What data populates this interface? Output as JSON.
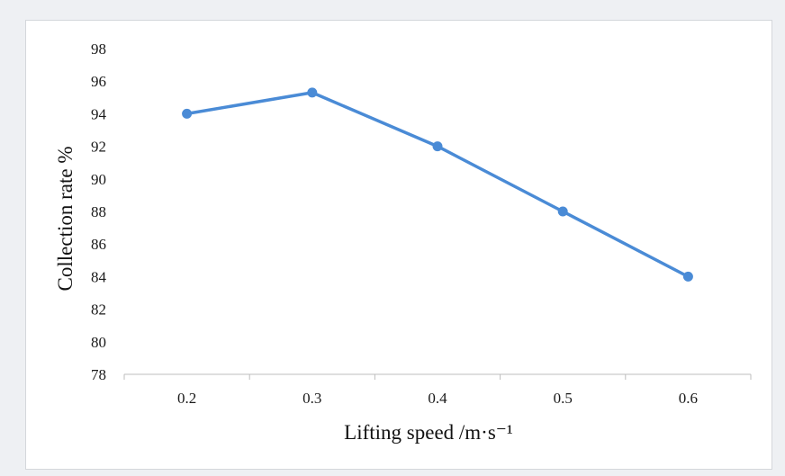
{
  "chart_data": {
    "type": "line",
    "xlabel": "Lifting speed /m·s⁻¹",
    "ylabel": "Collection rate %",
    "categories": [
      "0.2",
      "0.3",
      "0.4",
      "0.5",
      "0.6"
    ],
    "series": [
      {
        "values": [
          94.0,
          95.3,
          92.0,
          88.0,
          84.0
        ],
        "color": "#4a8bd6"
      }
    ],
    "ylim": [
      78,
      98
    ],
    "yticks": [
      78,
      80,
      82,
      84,
      86,
      88,
      90,
      92,
      94,
      96,
      98
    ],
    "grid": false,
    "legend": "none"
  }
}
